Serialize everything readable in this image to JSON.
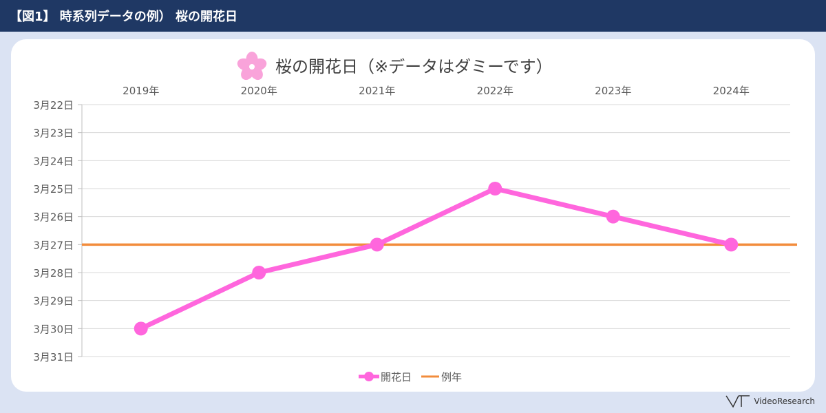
{
  "header": {
    "title": "【図1】 時系列データの例）  桜の開花日"
  },
  "brand": {
    "name": "VideoResearch",
    "icon": "vr-logo-icon"
  },
  "colors": {
    "header_bg": "#1f3864",
    "page_bg": "#dbe3f3",
    "series_bloom": "#ff66dd",
    "series_normal": "#f28c3c",
    "grid": "#d9d9d9",
    "text": "#595959"
  },
  "chart_data": {
    "type": "line",
    "title": "桜の開花日（※データはダミーです）",
    "title_icon": "cherry-blossom-icon",
    "categories": [
      "2019年",
      "2020年",
      "2021年",
      "2022年",
      "2023年",
      "2024年"
    ],
    "x_axis_position": "top",
    "y_axis": {
      "reversed": true,
      "tick_labels": [
        "3月22日",
        "3月23日",
        "3月24日",
        "3月25日",
        "3月26日",
        "3月27日",
        "3月28日",
        "3月29日",
        "3月30日",
        "3月31日"
      ],
      "ylim": [
        "3月22日",
        "3月31日"
      ]
    },
    "grid": true,
    "legend": "bottom",
    "series": [
      {
        "name": "開花日",
        "values": [
          "3月30日",
          "3月28日",
          "3月27日",
          "3月25日",
          "3月26日",
          "3月27日"
        ],
        "color": "#ff66dd",
        "markers": true
      },
      {
        "name": "例年",
        "values": [
          "3月27日",
          "3月27日",
          "3月27日",
          "3月27日",
          "3月27日",
          "3月27日"
        ],
        "color": "#f28c3c",
        "markers": false
      }
    ]
  }
}
